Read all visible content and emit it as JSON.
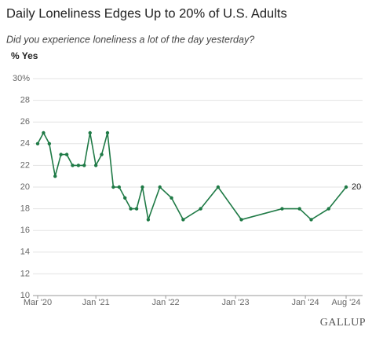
{
  "chart_data": {
    "type": "line",
    "title": "Daily Loneliness Edges Up to 20% of U.S. Adults",
    "subtitle": "Did you experience loneliness a lot of the day yesterday?",
    "y_label": "% Yes",
    "source": "GALLUP",
    "x": [
      "2020-03",
      "2020-04",
      "2020-05",
      "2020-06",
      "2020-07",
      "2020-08",
      "2020-09",
      "2020-10",
      "2020-11",
      "2020-12",
      "2021-01",
      "2021-02",
      "2021-03",
      "2021-04",
      "2021-05",
      "2021-06",
      "2021-07",
      "2021-08",
      "2021-09",
      "2021-10",
      "2021-12",
      "2022-02",
      "2022-04",
      "2022-07",
      "2022-10",
      "2023-02",
      "2023-09",
      "2023-12",
      "2024-02",
      "2024-05",
      "2024-08"
    ],
    "series": [
      {
        "name": "% Yes",
        "color": "#1f7a46",
        "values": [
          24,
          25,
          24,
          21,
          23,
          23,
          22,
          22,
          22,
          25,
          22,
          23,
          25,
          20,
          20,
          19,
          18,
          18,
          20,
          17,
          20,
          19,
          17,
          18,
          20,
          17,
          18,
          18,
          17,
          18,
          20
        ]
      }
    ],
    "xticks": [
      {
        "value": "2020-03",
        "label": "Mar '20"
      },
      {
        "value": "2021-01",
        "label": "Jan '21"
      },
      {
        "value": "2022-01",
        "label": "Jan '22"
      },
      {
        "value": "2023-01",
        "label": "Jan '23"
      },
      {
        "value": "2024-01",
        "label": "Jan '24"
      },
      {
        "value": "2024-08",
        "label": "Aug '24"
      }
    ],
    "xlim": [
      "2020-03",
      "2024-08"
    ],
    "ylim": [
      10,
      30
    ],
    "yticks": [
      10,
      12,
      14,
      16,
      18,
      20,
      22,
      24,
      26,
      28,
      {
        "value": 30,
        "label": "30%"
      }
    ],
    "grid": true
  }
}
